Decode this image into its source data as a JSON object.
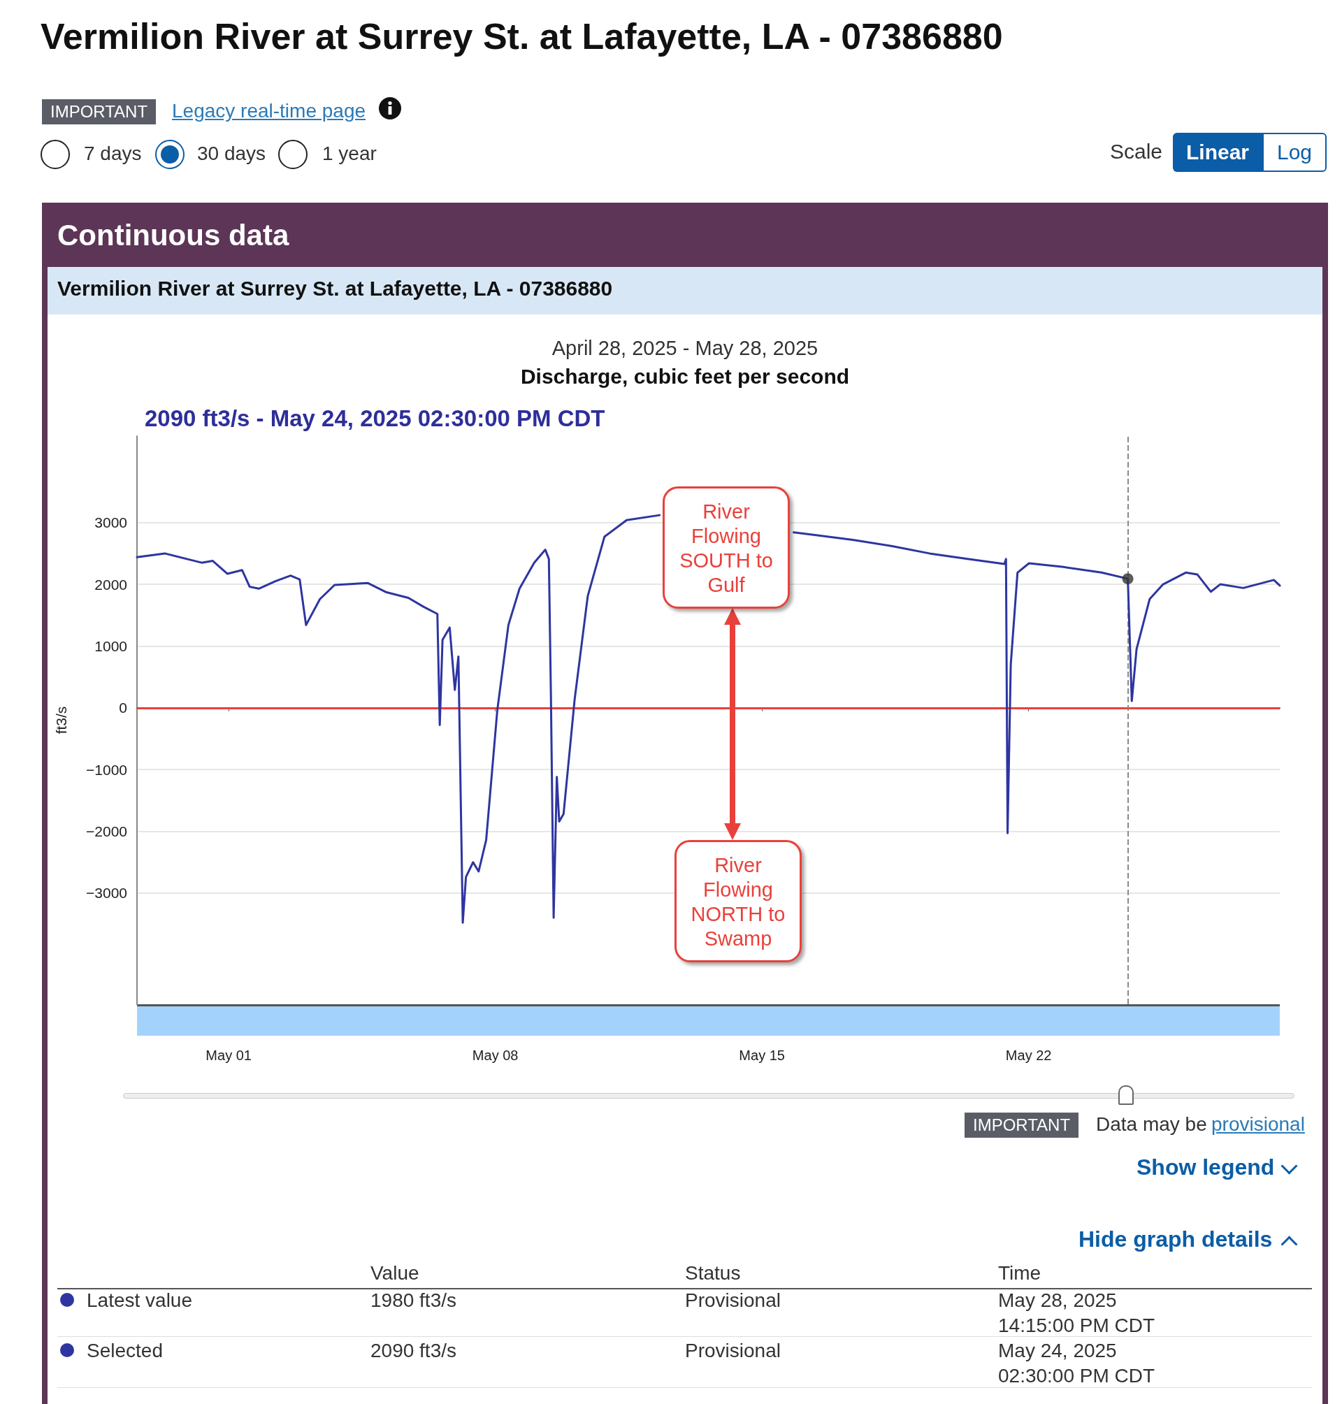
{
  "chart_data": {
    "type": "line",
    "title": "Vermilion River at Surrey St. at Lafayette, LA - 07386880",
    "subtitle": "April 28, 2025 - May 28, 2025",
    "ylabel": "ft3/s",
    "annotations": [
      "IMPORTANT",
      "Legacy real-time page",
      "7 days",
      "30 days",
      "1 year",
      "Scale",
      "Linear",
      "Log",
      "Continuous data",
      "Vermilion River at Surrey St. at Lafayette, LA - 07386880",
      "Discharge, cubic feet per second",
      "2090 ft3/s - May 24, 2025 02:30:00 PM CDT",
      "River Flowing SOUTH to Gulf",
      "River Flowing NORTH to Swamp",
      "IMPORTANT",
      "Data may be",
      "provisional",
      "Show legend",
      "Hide graph details",
      "Value",
      "Status",
      "Time",
      "Latest value",
      "1980 ft3/s",
      "Provisional",
      "May 28, 2025",
      "14:15:00 PM CDT",
      "Selected",
      "2090 ft3/s",
      "Provisional",
      "May 24, 2025",
      "02:30:00 PM CDT"
    ],
    "series": [
      {
        "color": "#2e35a0",
        "x": [
          "2025-04-28T14:15",
          "2025-04-29T07:45",
          "2025-04-30T07:00",
          "2025-04-30T14:00",
          "2025-04-30T23:15",
          "2025-05-01T08:30",
          "2025-05-01T13:15",
          "2025-05-01T19:00",
          "2025-05-02T05:30",
          "2025-05-02T15:00",
          "2025-05-02T20:45",
          "2025-05-03T00:45",
          "2025-05-03T09:30",
          "2025-05-03T18:45",
          "2025-05-04T15:45",
          "2025-05-05T03:30",
          "2025-05-05T17:15",
          "2025-05-06T02:30",
          "2025-05-06T11:30",
          "2025-05-06T13:00",
          "2025-05-06T14:45",
          "2025-05-06T19:15",
          "2025-05-06T22:30",
          "2025-05-07T00:45",
          "2025-05-07T03:30",
          "2025-05-07T05:30",
          "2025-05-07T10:00",
          "2025-05-07T13:30",
          "2025-05-07T18:15",
          "2025-05-08T01:15",
          "2025-05-08T08:15",
          "2025-05-08T15:15",
          "2025-05-09T00:30",
          "2025-05-09T07:30",
          "2025-05-09T09:45",
          "2025-05-09T11:00",
          "2025-05-09T12:45",
          "2025-05-09T14:45",
          "2025-05-09T16:15",
          "2025-05-09T19:00",
          "2025-05-10T02:00",
          "2025-05-10T10:15",
          "2025-05-10T20:45",
          "2025-05-11T10:45",
          "2025-05-12T07:30",
          "2025-05-14T00:00",
          "2025-05-15T20:00",
          "2025-05-16T09:15",
          "2025-05-17T09:15",
          "2025-05-18T09:30",
          "2025-05-19T09:30",
          "2025-05-20T09:30",
          "2025-05-21T08:45",
          "2025-05-21T09:45",
          "2025-05-21T10:45",
          "2025-05-21T12:45",
          "2025-05-21T17:00",
          "2025-05-22T00:15",
          "2025-05-22T22:00",
          "2025-05-23T22:00",
          "2025-05-24T14:30",
          "2025-05-24T17:00",
          "2025-05-24T20:00",
          "2025-05-25T04:15",
          "2025-05-25T12:45",
          "2025-05-26T03:00",
          "2025-05-26T10:15",
          "2025-05-26T18:45",
          "2025-05-27T00:45",
          "2025-05-27T15:15",
          "2025-05-28T10:30",
          "2025-05-28T14:15"
        ],
        "values": [
          2440,
          2500,
          2350,
          2380,
          2170,
          2230,
          1960,
          1930,
          2050,
          2140,
          2080,
          1340,
          1760,
          1990,
          2020,
          1870,
          1780,
          1640,
          1520,
          -280,
          1100,
          1300,
          290,
          830,
          -3480,
          -2740,
          -2500,
          -2650,
          -2140,
          -40,
          1340,
          1930,
          2350,
          2560,
          2410,
          260,
          -3400,
          -1120,
          -1840,
          -1720,
          140,
          1810,
          2770,
          3040,
          3120,
          null,
          2840,
          2800,
          2720,
          2620,
          2500,
          2410,
          2330,
          2410,
          -2030,
          700,
          2190,
          2340,
          2280,
          2190,
          2090,
          110,
          950,
          1760,
          2000,
          2190,
          2160,
          1880,
          2000,
          1940,
          2070,
          1980
        ]
      },
      {
        "type": "scatter",
        "color": "#333333",
        "marker": "circle",
        "x": [
          "2025-05-24T14:30"
        ],
        "values": [
          2090
        ]
      }
    ],
    "xlim": [
      "2025-04-28T14:15",
      "2025-05-28T14:15"
    ],
    "xticks": [
      {
        "value": "2025-05-01",
        "label": "May 01"
      },
      {
        "value": "2025-05-08",
        "label": "May 08"
      },
      {
        "value": "2025-05-15",
        "label": "May 15"
      },
      {
        "value": "2025-05-22",
        "label": "May 22"
      }
    ],
    "ylim": [
      -4800,
      4400
    ],
    "yticks": [
      {
        "value": -3000,
        "label": "−3000"
      },
      {
        "value": -2000,
        "label": "−2000"
      },
      {
        "value": -1000,
        "label": "−1000"
      },
      0,
      1000,
      2000,
      3000
    ],
    "ref_lines": [
      {
        "axis": "y",
        "value": 0,
        "color": "#e8413b",
        "line_style": "solid"
      },
      {
        "axis": "x",
        "value": "2025-05-24T14:30",
        "color": "#8a8a8a",
        "line_style": "dashed"
      }
    ],
    "grid": "y",
    "marker": "none",
    "line_style": "solid"
  }
}
